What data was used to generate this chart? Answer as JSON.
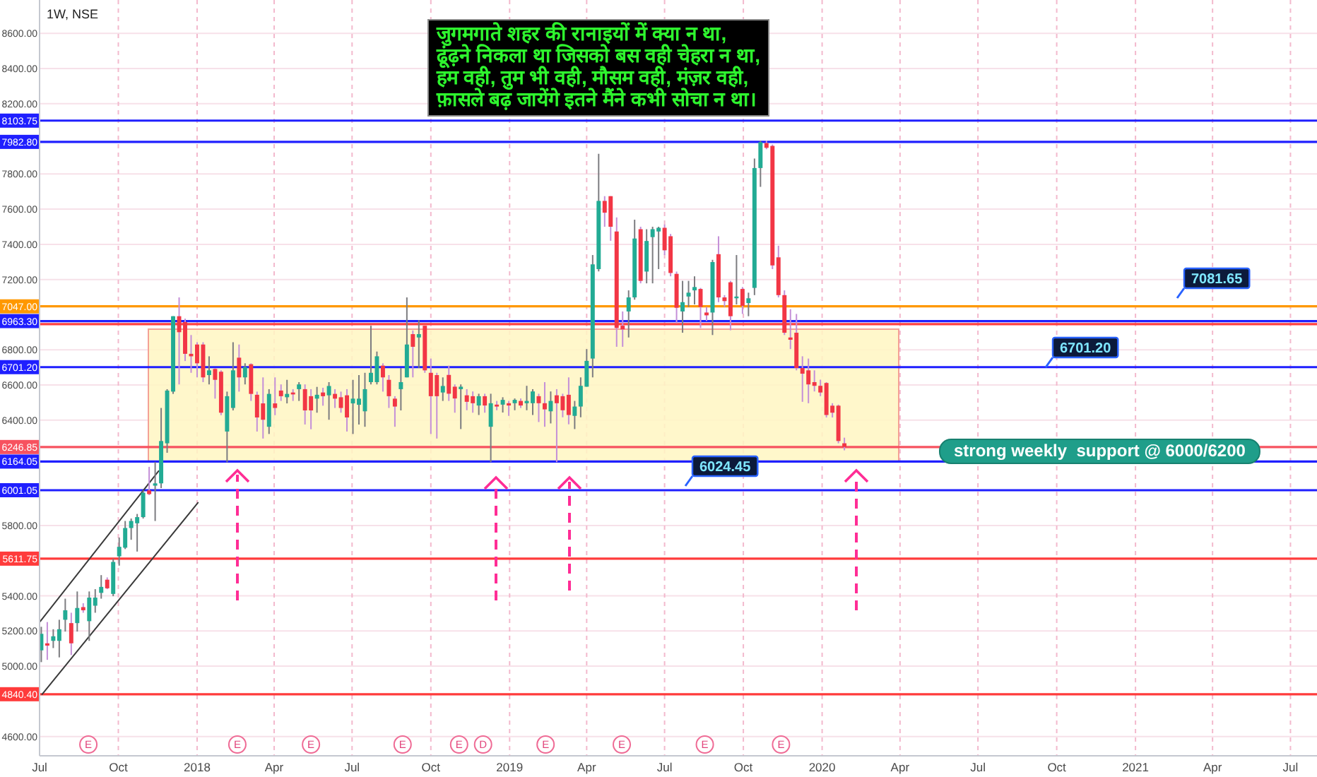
{
  "chart_data": {
    "type": "candlestick",
    "title": "1W, NSE",
    "x": [
      "2017-07-03",
      "2017-07-10",
      "2017-07-17",
      "2017-07-24",
      "2017-07-31",
      "2017-08-07",
      "2017-08-14",
      "2017-08-21",
      "2017-08-28",
      "2017-09-04",
      "2017-09-11",
      "2017-09-18",
      "2017-09-25",
      "2017-10-02",
      "2017-10-09",
      "2017-10-16",
      "2017-10-23",
      "2017-10-30",
      "2017-11-06",
      "2017-11-13",
      "2017-11-20",
      "2017-11-27",
      "2017-12-04",
      "2017-12-11",
      "2017-12-18",
      "2017-12-25",
      "2018-01-01",
      "2018-01-08",
      "2018-01-15",
      "2018-01-22",
      "2018-01-29",
      "2018-02-05",
      "2018-02-12",
      "2018-02-19",
      "2018-02-26",
      "2018-03-05",
      "2018-03-12",
      "2018-03-19",
      "2018-03-26",
      "2018-04-02",
      "2018-04-09",
      "2018-04-16",
      "2018-04-23",
      "2018-04-30",
      "2018-05-07",
      "2018-05-14",
      "2018-05-21",
      "2018-05-28",
      "2018-06-04",
      "2018-06-11",
      "2018-06-18",
      "2018-06-25",
      "2018-07-02",
      "2018-07-09",
      "2018-07-16",
      "2018-07-23",
      "2018-07-30",
      "2018-08-06",
      "2018-08-13",
      "2018-08-20",
      "2018-08-27",
      "2018-09-03",
      "2018-09-10",
      "2018-09-17",
      "2018-09-24",
      "2018-10-01",
      "2018-10-08",
      "2018-10-15",
      "2018-10-22",
      "2018-10-29",
      "2018-11-05",
      "2018-11-12",
      "2018-11-19",
      "2018-11-26",
      "2018-12-03",
      "2018-12-10",
      "2018-12-17",
      "2018-12-24",
      "2018-12-31",
      "2019-01-07",
      "2019-01-14",
      "2019-01-21",
      "2019-01-28",
      "2019-02-04",
      "2019-02-11",
      "2019-02-18",
      "2019-02-25",
      "2019-03-04",
      "2019-03-11",
      "2019-03-18",
      "2019-03-25",
      "2019-04-01",
      "2019-04-08",
      "2019-04-15",
      "2019-04-22",
      "2019-04-29",
      "2019-05-06",
      "2019-05-13",
      "2019-05-20",
      "2019-05-27",
      "2019-06-03",
      "2019-06-10",
      "2019-06-17",
      "2019-06-24",
      "2019-07-01",
      "2019-07-08",
      "2019-07-15",
      "2019-07-22",
      "2019-07-29",
      "2019-08-05",
      "2019-08-12",
      "2019-08-19",
      "2019-08-26",
      "2019-09-02",
      "2019-09-09",
      "2019-09-16",
      "2019-09-23",
      "2019-09-30",
      "2019-10-07",
      "2019-10-14",
      "2019-10-21",
      "2019-10-28",
      "2019-11-04",
      "2019-11-11",
      "2019-11-18",
      "2019-11-25",
      "2019-12-02",
      "2019-12-09",
      "2019-12-16",
      "2019-12-23",
      "2019-12-30",
      "2020-01-06",
      "2020-01-13",
      "2020-01-20",
      "2020-01-27"
    ],
    "ohlc": [
      [
        5090,
        5224,
        5023,
        5184
      ],
      [
        5130,
        5251,
        5036,
        5117
      ],
      [
        5144,
        5210,
        5103,
        5170
      ],
      [
        5144,
        5264,
        5050,
        5210
      ],
      [
        5264,
        5384,
        5197,
        5318
      ],
      [
        5245,
        5304,
        5063,
        5130
      ],
      [
        5245,
        5425,
        5197,
        5331
      ],
      [
        5336,
        5358,
        5304,
        5318
      ],
      [
        5256,
        5425,
        5144,
        5390
      ],
      [
        5344,
        5438,
        5304,
        5390
      ],
      [
        5417,
        5518,
        5384,
        5451
      ],
      [
        5492,
        5505,
        5438,
        5443
      ],
      [
        5411,
        5612,
        5398,
        5593
      ],
      [
        5625,
        5732,
        5572,
        5679
      ],
      [
        5674,
        5826,
        5666,
        5786
      ],
      [
        5786,
        5840,
        5719,
        5826
      ],
      [
        5813,
        5866,
        5652,
        5848
      ],
      [
        5848,
        6000,
        5840,
        5987
      ],
      [
        6000,
        6134,
        5973,
        5979
      ],
      [
        6027,
        6161,
        5826,
        6040
      ],
      [
        6040,
        6469,
        6013,
        6281
      ],
      [
        6268,
        6576,
        6214,
        6568
      ],
      [
        6562,
        6991,
        6549,
        6991
      ],
      [
        6991,
        7098,
        6603,
        6900
      ],
      [
        6958,
        6977,
        6736,
        6777
      ],
      [
        6777,
        6884,
        6669,
        6763
      ],
      [
        6830,
        6843,
        6643,
        6723
      ],
      [
        6830,
        6843,
        6616,
        6643
      ],
      [
        6656,
        6763,
        6603,
        6683
      ],
      [
        6691,
        6696,
        6522,
        6629
      ],
      [
        6675,
        6683,
        6428,
        6442
      ],
      [
        6335,
        6562,
        6160,
        6536
      ],
      [
        6469,
        6843,
        6455,
        6683
      ],
      [
        6755,
        6830,
        6562,
        6643
      ],
      [
        6643,
        6723,
        6603,
        6701
      ],
      [
        6718,
        6723,
        6509,
        6549
      ],
      [
        6544,
        6562,
        6335,
        6415
      ],
      [
        6495,
        6643,
        6295,
        6402
      ],
      [
        6362,
        6576,
        6321,
        6549
      ],
      [
        6495,
        6643,
        6428,
        6469
      ],
      [
        6568,
        6603,
        6509,
        6536
      ],
      [
        6530,
        6629,
        6495,
        6549
      ],
      [
        6557,
        6576,
        6509,
        6546
      ],
      [
        6576,
        6616,
        6509,
        6603
      ],
      [
        6576,
        6603,
        6375,
        6455
      ],
      [
        6536,
        6576,
        6348,
        6455
      ],
      [
        6522,
        6589,
        6442,
        6544
      ],
      [
        6557,
        6584,
        6482,
        6536
      ],
      [
        6541,
        6616,
        6402,
        6594
      ],
      [
        6549,
        6576,
        6469,
        6522
      ],
      [
        6530,
        6562,
        6442,
        6469
      ],
      [
        6541,
        6576,
        6335,
        6415
      ],
      [
        6495,
        6629,
        6321,
        6522
      ],
      [
        6487,
        6656,
        6375,
        6522
      ],
      [
        6450,
        6669,
        6362,
        6576
      ],
      [
        6616,
        6937,
        6603,
        6669
      ],
      [
        6616,
        6790,
        6603,
        6763
      ],
      [
        6710,
        6723,
        6562,
        6643
      ],
      [
        6629,
        6656,
        6469,
        6536
      ],
      [
        6522,
        6536,
        6362,
        6477
      ],
      [
        6576,
        6696,
        6455,
        6616
      ],
      [
        6643,
        7098,
        6643,
        6830
      ],
      [
        6889,
        6910,
        6643,
        6817
      ],
      [
        6870,
        6969,
        6696,
        6889
      ],
      [
        6937,
        6937,
        6669,
        6683
      ],
      [
        6669,
        6750,
        6321,
        6536
      ],
      [
        6656,
        6669,
        6295,
        6536
      ],
      [
        6557,
        6643,
        6509,
        6594
      ],
      [
        6657,
        6710,
        6509,
        6550
      ],
      [
        6590,
        6603,
        6442,
        6523
      ],
      [
        6576,
        6603,
        6349,
        6590
      ],
      [
        6541,
        6576,
        6456,
        6504
      ],
      [
        6536,
        6563,
        6442,
        6496
      ],
      [
        6483,
        6550,
        6429,
        6536
      ],
      [
        6536,
        6550,
        6442,
        6483
      ],
      [
        6362,
        6550,
        6161,
        6496
      ],
      [
        6488,
        6509,
        6456,
        6477
      ],
      [
        6488,
        6530,
        6443,
        6515
      ],
      [
        6496,
        6509,
        6424,
        6483
      ],
      [
        6496,
        6523,
        6456,
        6515
      ],
      [
        6509,
        6523,
        6469,
        6483
      ],
      [
        6496,
        6595,
        6456,
        6509
      ],
      [
        6496,
        6576,
        6429,
        6563
      ],
      [
        6536,
        6550,
        6389,
        6496
      ],
      [
        6496,
        6616,
        6362,
        6461
      ],
      [
        6450,
        6563,
        6381,
        6509
      ],
      [
        6541,
        6576,
        6161,
        6496
      ],
      [
        6536,
        6550,
        6416,
        6456
      ],
      [
        6544,
        6643,
        6376,
        6429
      ],
      [
        6424,
        6509,
        6349,
        6477
      ],
      [
        6477,
        6643,
        6416,
        6595
      ],
      [
        6590,
        6804,
        6590,
        6737
      ],
      [
        6750,
        7339,
        6643,
        7286
      ],
      [
        7259,
        7915,
        7246,
        7647
      ],
      [
        7647,
        7674,
        7500,
        7580
      ],
      [
        7674,
        7674,
        7420,
        7500
      ],
      [
        7473,
        7553,
        6817,
        6924
      ],
      [
        6937,
        7018,
        6817,
        6916
      ],
      [
        7018,
        7138,
        6870,
        7098
      ],
      [
        7098,
        7540,
        7085,
        7433
      ],
      [
        7486,
        7500,
        7178,
        7192
      ],
      [
        7245,
        7486,
        7178,
        7419
      ],
      [
        7441,
        7500,
        7178,
        7486
      ],
      [
        7473,
        7500,
        7259,
        7494
      ],
      [
        7494,
        7513,
        7339,
        7366
      ],
      [
        7446,
        7459,
        7218,
        7237
      ],
      [
        7232,
        7245,
        6951,
        7039
      ],
      [
        7018,
        7192,
        6897,
        7071
      ],
      [
        7103,
        7192,
        7044,
        7125
      ],
      [
        7138,
        7218,
        7058,
        7157
      ],
      [
        7146,
        7152,
        6924,
        7044
      ],
      [
        7012,
        7044,
        6964,
        6996
      ],
      [
        7012,
        7312,
        6884,
        7299
      ],
      [
        7344,
        7446,
        7071,
        7098
      ],
      [
        7098,
        7111,
        7044,
        7077
      ],
      [
        7184,
        7192,
        6911,
        6991
      ],
      [
        7093,
        7339,
        7058,
        7103
      ],
      [
        7146,
        7157,
        7004,
        7050
      ],
      [
        7066,
        7125,
        6991,
        7093
      ],
      [
        7152,
        7888,
        7111,
        7834
      ],
      [
        7834,
        7990,
        7727,
        7981
      ],
      [
        7976,
        7990,
        7941,
        7949
      ],
      [
        7960,
        7968,
        7259,
        7280
      ],
      [
        7326,
        7392,
        7098,
        7111
      ],
      [
        7111,
        7138,
        6884,
        6897
      ],
      [
        6870,
        7031,
        6804,
        6857
      ],
      [
        6897,
        7004,
        6683,
        6696
      ],
      [
        6696,
        6763,
        6504,
        6664
      ],
      [
        6683,
        6750,
        6496,
        6603
      ],
      [
        6616,
        6683,
        6563,
        6595
      ],
      [
        6595,
        6630,
        6536,
        6557
      ],
      [
        6611,
        6616,
        6415,
        6429
      ],
      [
        6482,
        6496,
        6415,
        6442
      ],
      [
        6482,
        6488,
        6268,
        6281
      ],
      [
        6268,
        6300,
        6228,
        6246.85
      ]
    ],
    "series": [
      {
        "type": "line",
        "x": [
          "2017-07-01",
          "2017-11-17"
        ],
        "values": [
          5250,
          6110
        ],
        "color": "#3a3a3a"
      },
      {
        "type": "line",
        "x": [
          "2017-07-04",
          "2018-01-02"
        ],
        "values": [
          4840,
          5930
        ],
        "color": "#3a3a3a"
      }
    ],
    "xlim": [
      "2017-07-01",
      "2021-08-01"
    ],
    "xticks": [
      {
        "value": "2017-07-01",
        "label": "Jul"
      },
      {
        "value": "2017-10-01",
        "label": "Oct"
      },
      {
        "value": "2018-01-01",
        "label": "2018"
      },
      {
        "value": "2018-04-01",
        "label": "Apr"
      },
      {
        "value": "2018-07-01",
        "label": "Jul"
      },
      {
        "value": "2018-10-01",
        "label": "Oct"
      },
      {
        "value": "2019-01-01",
        "label": "2019"
      },
      {
        "value": "2019-04-01",
        "label": "Apr"
      },
      {
        "value": "2019-07-01",
        "label": "Jul"
      },
      {
        "value": "2019-10-01",
        "label": "Oct"
      },
      {
        "value": "2020-01-01",
        "label": "2020"
      },
      {
        "value": "2020-04-01",
        "label": "Apr"
      },
      {
        "value": "2020-07-01",
        "label": "Jul"
      },
      {
        "value": "2020-10-01",
        "label": "Oct"
      },
      {
        "value": "2021-01-01",
        "label": "2021"
      },
      {
        "value": "2021-04-01",
        "label": "Apr"
      },
      {
        "value": "2021-07-01",
        "label": "Jul"
      }
    ],
    "ylim": [
      4490,
      8790
    ],
    "yticks": [
      {
        "value": 4600,
        "label": "4600.00"
      },
      {
        "value": 5000,
        "label": "5000.00"
      },
      {
        "value": 5200,
        "label": "5200.00"
      },
      {
        "value": 5400,
        "label": "5400.00"
      },
      {
        "value": 5800,
        "label": "5800.00"
      },
      {
        "value": 6400,
        "label": "6400.00"
      },
      {
        "value": 6600,
        "label": "6600.00"
      },
      {
        "value": 6800,
        "label": "6800.00"
      },
      {
        "value": 7200,
        "label": "7200.00"
      },
      {
        "value": 7400,
        "label": "7400.00"
      },
      {
        "value": 7600,
        "label": "7600.00"
      },
      {
        "value": 7800,
        "label": "7800.00"
      },
      {
        "value": 8200,
        "label": "8200.00"
      },
      {
        "value": 8400,
        "label": "8400.00"
      },
      {
        "value": 8600,
        "label": "8600.00"
      }
    ],
    "grid": true,
    "ref_lines": [
      {
        "axis": "y",
        "value": 8103.75,
        "label": "8103.75",
        "color": "#1f1fff"
      },
      {
        "axis": "y",
        "value": 7982.8,
        "label": "7982.80",
        "color": "#1f1fff"
      },
      {
        "axis": "y",
        "value": 7047,
        "label": "7047.00",
        "color": "#ff9800"
      },
      {
        "axis": "y",
        "value": 6963.3,
        "label": "6963.30",
        "color": "#1f1fff"
      },
      {
        "axis": "y",
        "value": 6946,
        "color": "#ff4040"
      },
      {
        "axis": "y",
        "value": 6701.2,
        "label": "6701.20",
        "color": "#1f1fff"
      },
      {
        "axis": "y",
        "value": 6246.85,
        "label": "6246.85",
        "color": "#f7525f"
      },
      {
        "axis": "y",
        "value": 6164.05,
        "label": "6164.05",
        "color": "#1f1fff"
      },
      {
        "axis": "y",
        "value": 6001.05,
        "label": "6001.05",
        "color": "#1f1fff"
      },
      {
        "axis": "y",
        "value": 5611.75,
        "label": "5611.75",
        "color": "#ff3b3b"
      },
      {
        "axis": "y",
        "value": 4840.4,
        "label": "4840.40",
        "color": "#ff3b3b"
      }
    ],
    "annotations": [
      "जुगमगाते शहर की रानाइयों में क्या न था,\nढूंढ़ने निकला था जिसको बस वही चेहरा न था,\nहम वही, तुम भी वही, मौसम वही, मंज़र वही,\nफ़ासले बढ़ जायेंगे इतने मैंने कभी सोचा न था।",
      "strong weekly  support @ 6000/6200",
      "7081.65",
      "6701.20",
      "6024.45",
      {
        "text": "E",
        "x": "2017-08-27"
      },
      {
        "text": "E",
        "x": "2018-02-17"
      },
      {
        "text": "E",
        "x": "2018-05-14"
      },
      {
        "text": "E",
        "x": "2018-08-29"
      },
      {
        "text": "E",
        "x": "2018-11-03"
      },
      {
        "text": "D",
        "x": "2018-12-01"
      },
      {
        "text": "E",
        "x": "2019-02-12"
      },
      {
        "text": "E",
        "x": "2019-05-12"
      },
      {
        "text": "E",
        "x": "2019-08-17"
      },
      {
        "text": "E",
        "x": "2019-11-14"
      }
    ]
  }
}
